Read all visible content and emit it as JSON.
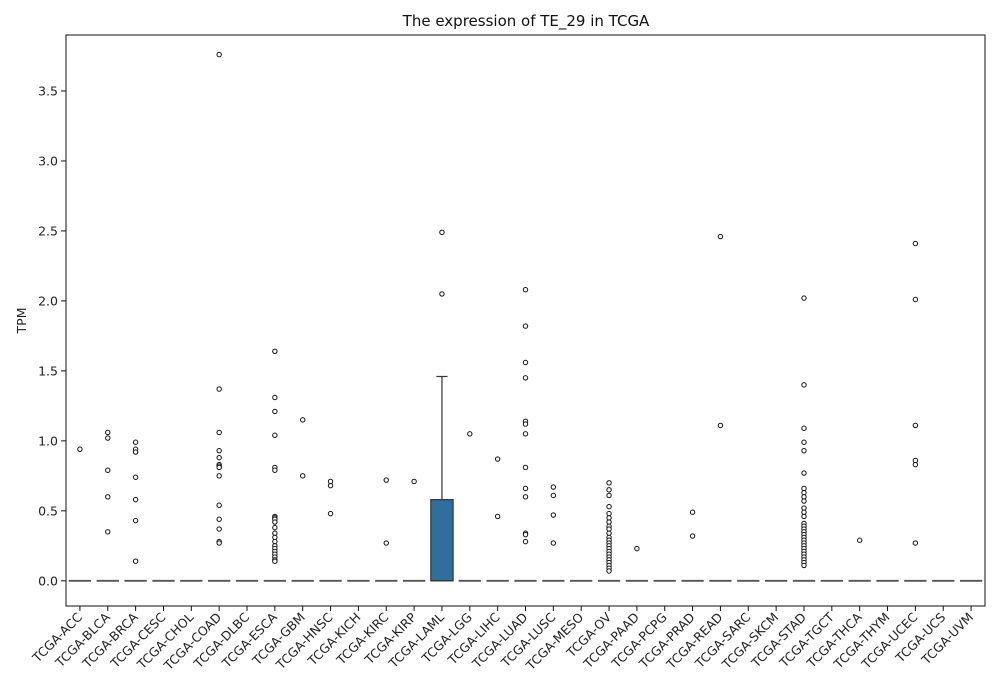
{
  "chart_data": {
    "type": "box",
    "title": "The expression of TE_29 in TCGA",
    "xlabel": "",
    "ylabel": "TPM",
    "ylim": [
      -0.18,
      3.9
    ],
    "yticks": [
      "0.0",
      "0.5",
      "1.0",
      "1.5",
      "2.0",
      "2.5",
      "3.0",
      "3.5"
    ],
    "grid": false,
    "colors": {
      "box_fill": "#2e6f9e",
      "box_edge": "#333333",
      "flat_line": "#555555",
      "outlier_edge": "#111111"
    },
    "categories": [
      "TCGA-ACC",
      "TCGA-BLCA",
      "TCGA-BRCA",
      "TCGA-CESC",
      "TCGA-CHOL",
      "TCGA-COAD",
      "TCGA-DLBC",
      "TCGA-ESCA",
      "TCGA-GBM",
      "TCGA-HNSC",
      "TCGA-KICH",
      "TCGA-KIRC",
      "TCGA-KIRP",
      "TCGA-LAML",
      "TCGA-LGG",
      "TCGA-LIHC",
      "TCGA-LUAD",
      "TCGA-LUSC",
      "TCGA-MESO",
      "TCGA-OV",
      "TCGA-PAAD",
      "TCGA-PCPG",
      "TCGA-PRAD",
      "TCGA-READ",
      "TCGA-SARC",
      "TCGA-SKCM",
      "TCGA-STAD",
      "TCGA-TGCT",
      "TCGA-THCA",
      "TCGA-THYM",
      "TCGA-UCEC",
      "TCGA-UCS",
      "TCGA-UVM"
    ],
    "boxes": [
      {
        "q1": 0,
        "median": 0,
        "q3": 0,
        "whisker_low": 0,
        "whisker_high": 0,
        "outliers": [
          0.94
        ]
      },
      {
        "q1": 0,
        "median": 0,
        "q3": 0,
        "whisker_low": 0,
        "whisker_high": 0,
        "outliers": [
          1.06,
          1.02,
          0.79,
          0.6,
          0.35
        ]
      },
      {
        "q1": 0,
        "median": 0,
        "q3": 0,
        "whisker_low": 0,
        "whisker_high": 0,
        "outliers": [
          0.99,
          0.94,
          0.92,
          0.74,
          0.58,
          0.43,
          0.14
        ]
      },
      {
        "q1": 0,
        "median": 0,
        "q3": 0,
        "whisker_low": 0,
        "whisker_high": 0,
        "outliers": []
      },
      {
        "q1": 0,
        "median": 0,
        "q3": 0,
        "whisker_low": 0,
        "whisker_high": 0,
        "outliers": []
      },
      {
        "q1": 0,
        "median": 0,
        "q3": 0,
        "whisker_low": 0,
        "whisker_high": 0,
        "outliers": [
          3.76,
          1.37,
          1.06,
          0.93,
          0.88,
          0.83,
          0.82,
          0.81,
          0.75,
          0.54,
          0.44,
          0.37,
          0.28,
          0.27
        ]
      },
      {
        "q1": 0,
        "median": 0,
        "q3": 0,
        "whisker_low": 0,
        "whisker_high": 0,
        "outliers": []
      },
      {
        "q1": 0,
        "median": 0,
        "q3": 0,
        "whisker_low": 0,
        "whisker_high": 0,
        "outliers": [
          1.64,
          1.31,
          1.21,
          1.04,
          0.81,
          0.79,
          0.46,
          0.45,
          0.44,
          0.42,
          0.38,
          0.34,
          0.31,
          0.28,
          0.25,
          0.23,
          0.21,
          0.19,
          0.17,
          0.15,
          0.14
        ]
      },
      {
        "q1": 0,
        "median": 0,
        "q3": 0,
        "whisker_low": 0,
        "whisker_high": 0,
        "outliers": [
          1.15,
          0.75
        ]
      },
      {
        "q1": 0,
        "median": 0,
        "q3": 0,
        "whisker_low": 0,
        "whisker_high": 0,
        "outliers": [
          0.71,
          0.68,
          0.48
        ]
      },
      {
        "q1": 0,
        "median": 0,
        "q3": 0,
        "whisker_low": 0,
        "whisker_high": 0,
        "outliers": []
      },
      {
        "q1": 0,
        "median": 0,
        "q3": 0,
        "whisker_low": 0,
        "whisker_high": 0,
        "outliers": [
          0.72,
          0.27
        ]
      },
      {
        "q1": 0,
        "median": 0,
        "q3": 0,
        "whisker_low": 0,
        "whisker_high": 0,
        "outliers": [
          0.71
        ]
      },
      {
        "q1": 0,
        "median": 0,
        "q3": 0.58,
        "whisker_low": 0,
        "whisker_high": 1.46,
        "outliers": [
          2.49,
          2.05
        ]
      },
      {
        "q1": 0,
        "median": 0,
        "q3": 0,
        "whisker_low": 0,
        "whisker_high": 0,
        "outliers": [
          1.05
        ]
      },
      {
        "q1": 0,
        "median": 0,
        "q3": 0,
        "whisker_low": 0,
        "whisker_high": 0,
        "outliers": [
          0.87,
          0.46
        ]
      },
      {
        "q1": 0,
        "median": 0,
        "q3": 0,
        "whisker_low": 0,
        "whisker_high": 0,
        "outliers": [
          2.08,
          1.82,
          1.56,
          1.45,
          1.14,
          1.12,
          1.05,
          0.81,
          0.66,
          0.6,
          0.34,
          0.33,
          0.28
        ]
      },
      {
        "q1": 0,
        "median": 0,
        "q3": 0,
        "whisker_low": 0,
        "whisker_high": 0,
        "outliers": [
          0.67,
          0.61,
          0.47,
          0.27
        ]
      },
      {
        "q1": 0,
        "median": 0,
        "q3": 0,
        "whisker_low": 0,
        "whisker_high": 0,
        "outliers": []
      },
      {
        "q1": 0,
        "median": 0,
        "q3": 0,
        "whisker_low": 0,
        "whisker_high": 0,
        "outliers": [
          0.7,
          0.65,
          0.61,
          0.53,
          0.48,
          0.45,
          0.42,
          0.39,
          0.37,
          0.34,
          0.31,
          0.29,
          0.27,
          0.25,
          0.23,
          0.21,
          0.19,
          0.17,
          0.15,
          0.13,
          0.11,
          0.09,
          0.07
        ]
      },
      {
        "q1": 0,
        "median": 0,
        "q3": 0,
        "whisker_low": 0,
        "whisker_high": 0,
        "outliers": [
          0.23
        ]
      },
      {
        "q1": 0,
        "median": 0,
        "q3": 0,
        "whisker_low": 0,
        "whisker_high": 0,
        "outliers": []
      },
      {
        "q1": 0,
        "median": 0,
        "q3": 0,
        "whisker_low": 0,
        "whisker_high": 0,
        "outliers": [
          0.49,
          0.32
        ]
      },
      {
        "q1": 0,
        "median": 0,
        "q3": 0,
        "whisker_low": 0,
        "whisker_high": 0,
        "outliers": [
          2.46,
          1.11
        ]
      },
      {
        "q1": 0,
        "median": 0,
        "q3": 0,
        "whisker_low": 0,
        "whisker_high": 0,
        "outliers": []
      },
      {
        "q1": 0,
        "median": 0,
        "q3": 0,
        "whisker_low": 0,
        "whisker_high": 0,
        "outliers": []
      },
      {
        "q1": 0,
        "median": 0,
        "q3": 0,
        "whisker_low": 0,
        "whisker_high": 0,
        "outliers": [
          2.02,
          1.4,
          1.09,
          0.99,
          0.93,
          0.77,
          0.66,
          0.63,
          0.6,
          0.57,
          0.52,
          0.49,
          0.46,
          0.41,
          0.39,
          0.37,
          0.35,
          0.33,
          0.31,
          0.29,
          0.27,
          0.25,
          0.23,
          0.21,
          0.19,
          0.17,
          0.15,
          0.13,
          0.11
        ]
      },
      {
        "q1": 0,
        "median": 0,
        "q3": 0,
        "whisker_low": 0,
        "whisker_high": 0,
        "outliers": []
      },
      {
        "q1": 0,
        "median": 0,
        "q3": 0,
        "whisker_low": 0,
        "whisker_high": 0,
        "outliers": [
          0.29
        ]
      },
      {
        "q1": 0,
        "median": 0,
        "q3": 0,
        "whisker_low": 0,
        "whisker_high": 0,
        "outliers": []
      },
      {
        "q1": 0,
        "median": 0,
        "q3": 0,
        "whisker_low": 0,
        "whisker_high": 0,
        "outliers": [
          2.41,
          2.01,
          1.11,
          0.86,
          0.83,
          0.27
        ]
      },
      {
        "q1": 0,
        "median": 0,
        "q3": 0,
        "whisker_low": 0,
        "whisker_high": 0,
        "outliers": []
      },
      {
        "q1": 0,
        "median": 0,
        "q3": 0,
        "whisker_low": 0,
        "whisker_high": 0,
        "outliers": []
      }
    ]
  }
}
